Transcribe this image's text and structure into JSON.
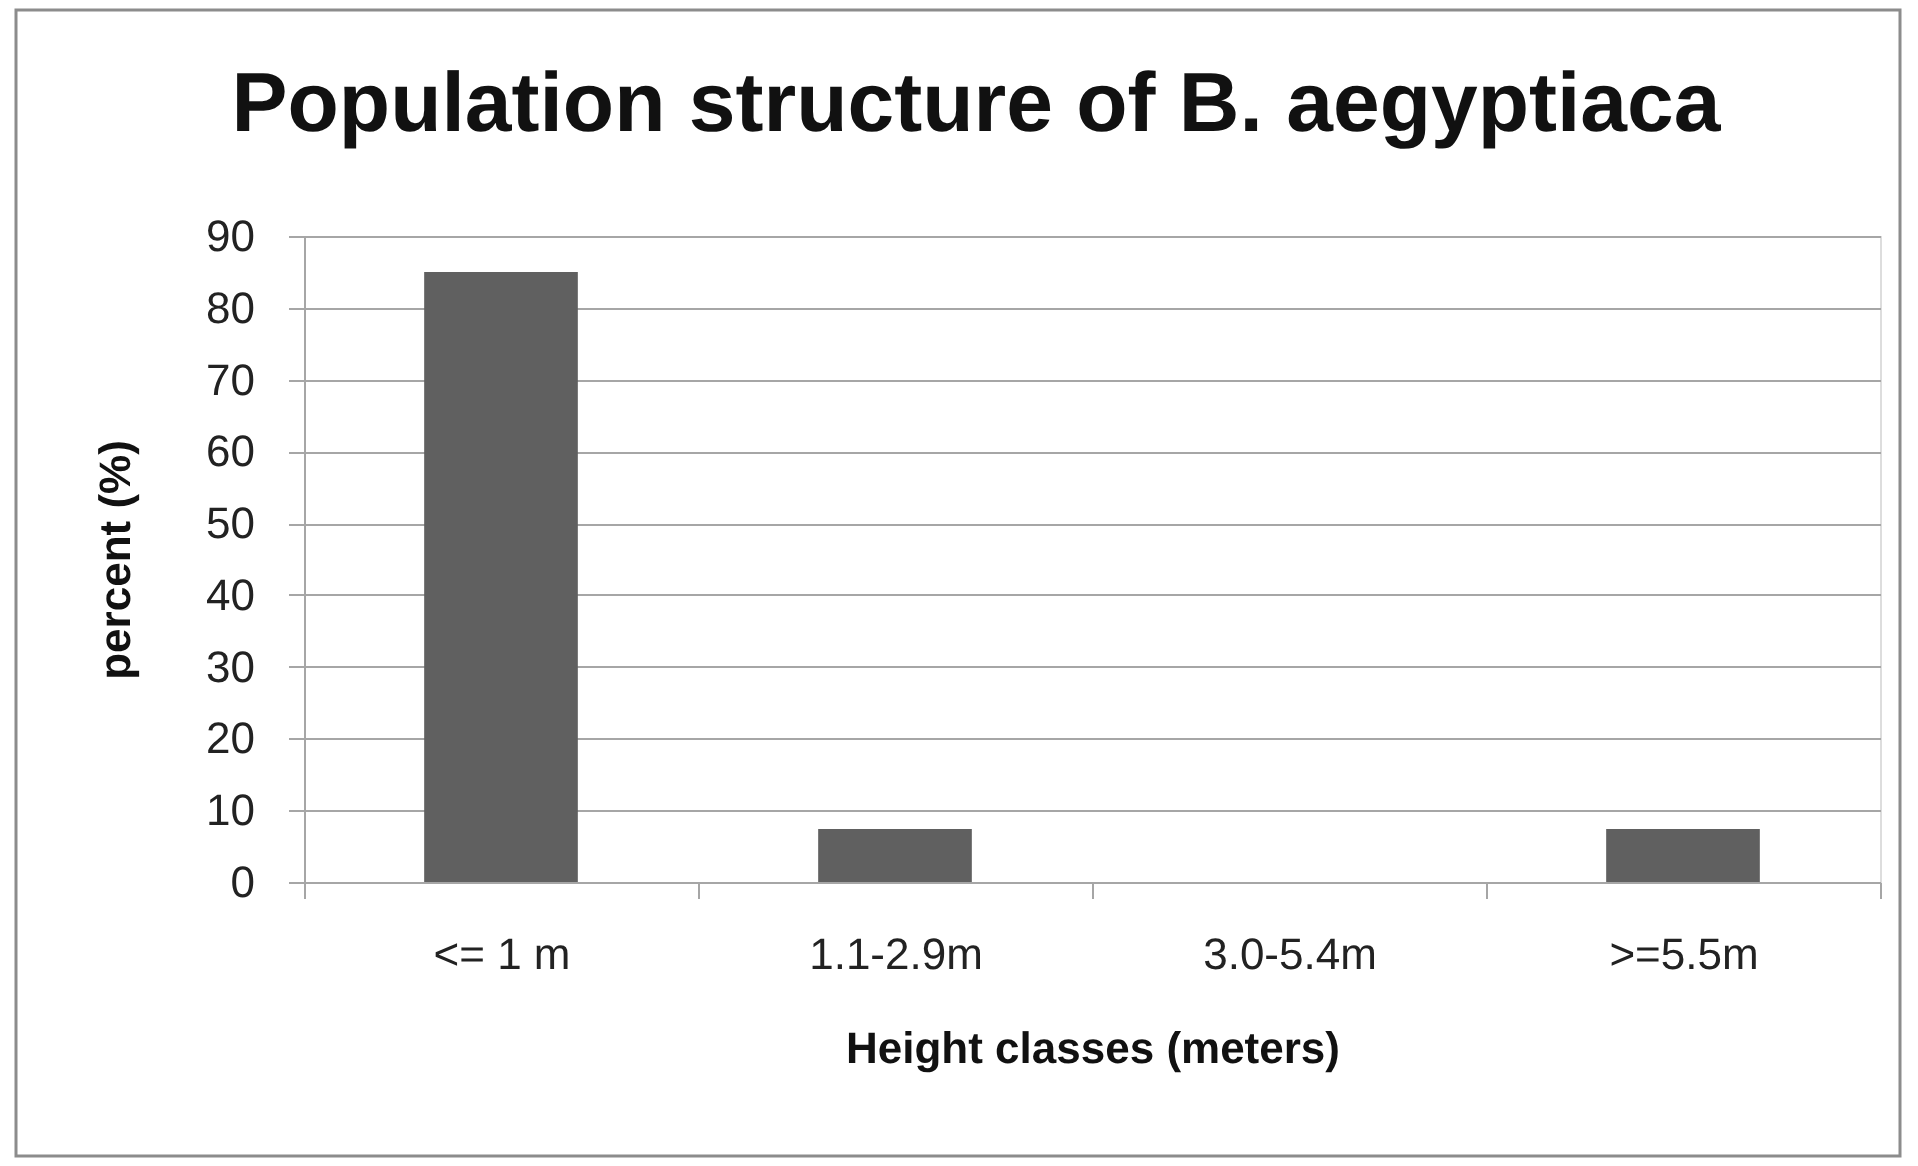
{
  "chart_data": {
    "type": "bar",
    "title": "Population structure of B. aegyptiaca",
    "categories": [
      "<= 1 m",
      "1.1-2.9m",
      "3.0-5.4m",
      ">=5.5m"
    ],
    "values": [
      85,
      7.4,
      0,
      7.4
    ],
    "color": "#606060",
    "xlabel": "Height classes (meters)",
    "ylabel": "percent (%)",
    "ylim": [
      0,
      90
    ],
    "yticks": [
      0,
      10,
      20,
      30,
      40,
      50,
      60,
      70,
      80,
      90
    ],
    "grid": "y"
  }
}
